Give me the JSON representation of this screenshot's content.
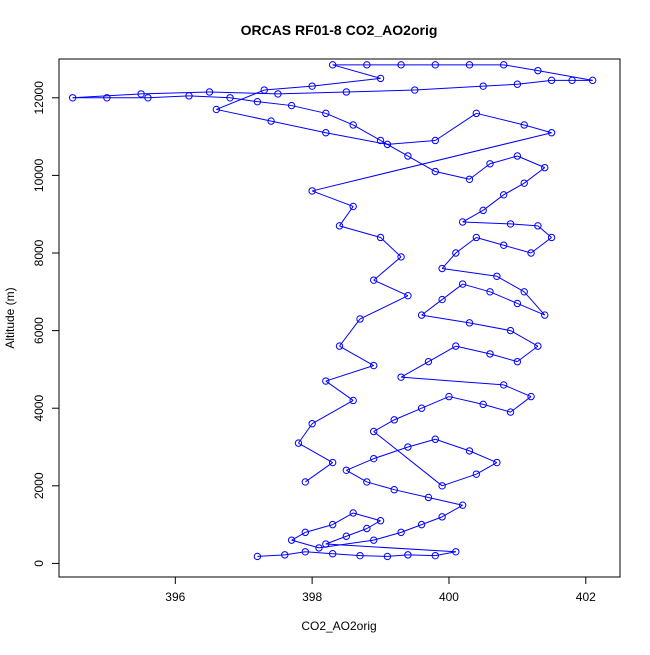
{
  "chart_data": {
    "type": "scatter",
    "title": "ORCAS RF01-8 CO2_AO2orig",
    "xlabel": "CO2_AO2orig",
    "ylabel": "Altitude (m)",
    "xlim": [
      394.3,
      402.5
    ],
    "ylim": [
      -350,
      13000
    ],
    "xticks": [
      396,
      398,
      400,
      402
    ],
    "yticks": [
      0,
      2000,
      4000,
      6000,
      8000,
      10000,
      12000
    ],
    "xtick_labels": [
      "396",
      "398",
      "400",
      "402"
    ],
    "ytick_labels": [
      "0",
      "2000",
      "4000",
      "6000",
      "8000",
      "10000",
      "12000"
    ],
    "grid": false,
    "legend": "none",
    "color": "#0000ff",
    "series": [
      {
        "points": [
          [
            397.2,
            180
          ],
          [
            397.6,
            220
          ],
          [
            397.9,
            300
          ],
          [
            398.3,
            250
          ],
          [
            398.7,
            200
          ],
          [
            399.1,
            180
          ],
          [
            399.4,
            220
          ],
          [
            399.8,
            200
          ],
          [
            400.1,
            300
          ],
          [
            398.2,
            500
          ],
          [
            398.5,
            700
          ],
          [
            398.8,
            900
          ],
          [
            399.0,
            1100
          ],
          [
            398.6,
            1300
          ],
          [
            398.3,
            1000
          ],
          [
            397.9,
            800
          ],
          [
            397.7,
            600
          ],
          [
            398.1,
            400
          ],
          [
            398.9,
            600
          ],
          [
            399.3,
            800
          ],
          [
            399.6,
            1000
          ],
          [
            399.9,
            1200
          ],
          [
            400.2,
            1500
          ],
          [
            399.7,
            1700
          ],
          [
            399.2,
            1900
          ],
          [
            398.8,
            2100
          ],
          [
            398.5,
            2400
          ],
          [
            398.9,
            2700
          ],
          [
            399.4,
            3000
          ],
          [
            399.8,
            3200
          ],
          [
            400.3,
            2900
          ],
          [
            400.7,
            2600
          ],
          [
            400.4,
            2300
          ],
          [
            399.9,
            2000
          ],
          [
            398.9,
            3400
          ],
          [
            399.2,
            3700
          ],
          [
            399.6,
            4000
          ],
          [
            400.0,
            4300
          ],
          [
            400.5,
            4100
          ],
          [
            400.9,
            3900
          ],
          [
            401.2,
            4300
          ],
          [
            400.8,
            4600
          ],
          [
            399.3,
            4800
          ],
          [
            399.7,
            5200
          ],
          [
            400.1,
            5600
          ],
          [
            400.6,
            5400
          ],
          [
            401.0,
            5200
          ],
          [
            401.3,
            5600
          ],
          [
            400.9,
            6000
          ],
          [
            400.3,
            6200
          ],
          [
            399.6,
            6400
          ],
          [
            399.9,
            6800
          ],
          [
            400.2,
            7200
          ],
          [
            400.6,
            7000
          ],
          [
            401.0,
            6700
          ],
          [
            401.4,
            6400
          ],
          [
            401.1,
            7000
          ],
          [
            400.7,
            7400
          ],
          [
            399.9,
            7600
          ],
          [
            400.1,
            8000
          ],
          [
            400.4,
            8400
          ],
          [
            400.8,
            8200
          ],
          [
            401.2,
            8000
          ],
          [
            401.5,
            8400
          ],
          [
            401.3,
            8700
          ],
          [
            400.9,
            8750
          ],
          [
            400.2,
            8800
          ],
          [
            400.5,
            9100
          ],
          [
            400.8,
            9500
          ],
          [
            401.1,
            9800
          ],
          [
            401.4,
            10200
          ],
          [
            401.0,
            10500
          ],
          [
            400.6,
            10300
          ],
          [
            400.3,
            9900
          ],
          [
            399.8,
            10100
          ],
          [
            399.4,
            10500
          ],
          [
            399.0,
            10900
          ],
          [
            398.6,
            11300
          ],
          [
            398.2,
            11600
          ],
          [
            397.7,
            11800
          ],
          [
            397.2,
            11900
          ],
          [
            396.8,
            12000
          ],
          [
            396.2,
            12050
          ],
          [
            395.6,
            12000
          ],
          [
            395.0,
            12000
          ],
          [
            394.5,
            12000
          ],
          [
            395.5,
            12100
          ],
          [
            396.5,
            12150
          ],
          [
            397.5,
            12100
          ],
          [
            398.5,
            12150
          ],
          [
            399.5,
            12200
          ],
          [
            400.5,
            12300
          ],
          [
            401.0,
            12350
          ],
          [
            401.5,
            12450
          ],
          [
            401.8,
            12450
          ],
          [
            402.1,
            12450
          ],
          [
            401.3,
            12700
          ],
          [
            400.8,
            12850
          ],
          [
            400.3,
            12850
          ],
          [
            399.8,
            12850
          ],
          [
            399.3,
            12850
          ],
          [
            398.8,
            12850
          ],
          [
            398.3,
            12850
          ],
          [
            399.0,
            12500
          ],
          [
            398.0,
            12300
          ],
          [
            397.3,
            12200
          ],
          [
            396.6,
            11700
          ],
          [
            397.4,
            11400
          ],
          [
            398.2,
            11100
          ],
          [
            399.1,
            10800
          ],
          [
            399.8,
            10900
          ],
          [
            400.4,
            11600
          ],
          [
            401.1,
            11300
          ],
          [
            401.5,
            11100
          ],
          [
            398.0,
            9600
          ],
          [
            398.6,
            9200
          ],
          [
            398.4,
            8700
          ],
          [
            399.0,
            8400
          ],
          [
            399.3,
            7900
          ],
          [
            398.9,
            7300
          ],
          [
            399.4,
            6900
          ],
          [
            398.7,
            6300
          ],
          [
            398.4,
            5600
          ],
          [
            398.9,
            5100
          ],
          [
            398.2,
            4700
          ],
          [
            398.6,
            4200
          ],
          [
            398.0,
            3600
          ],
          [
            397.8,
            3100
          ],
          [
            398.3,
            2600
          ],
          [
            397.9,
            2100
          ]
        ]
      }
    ]
  }
}
